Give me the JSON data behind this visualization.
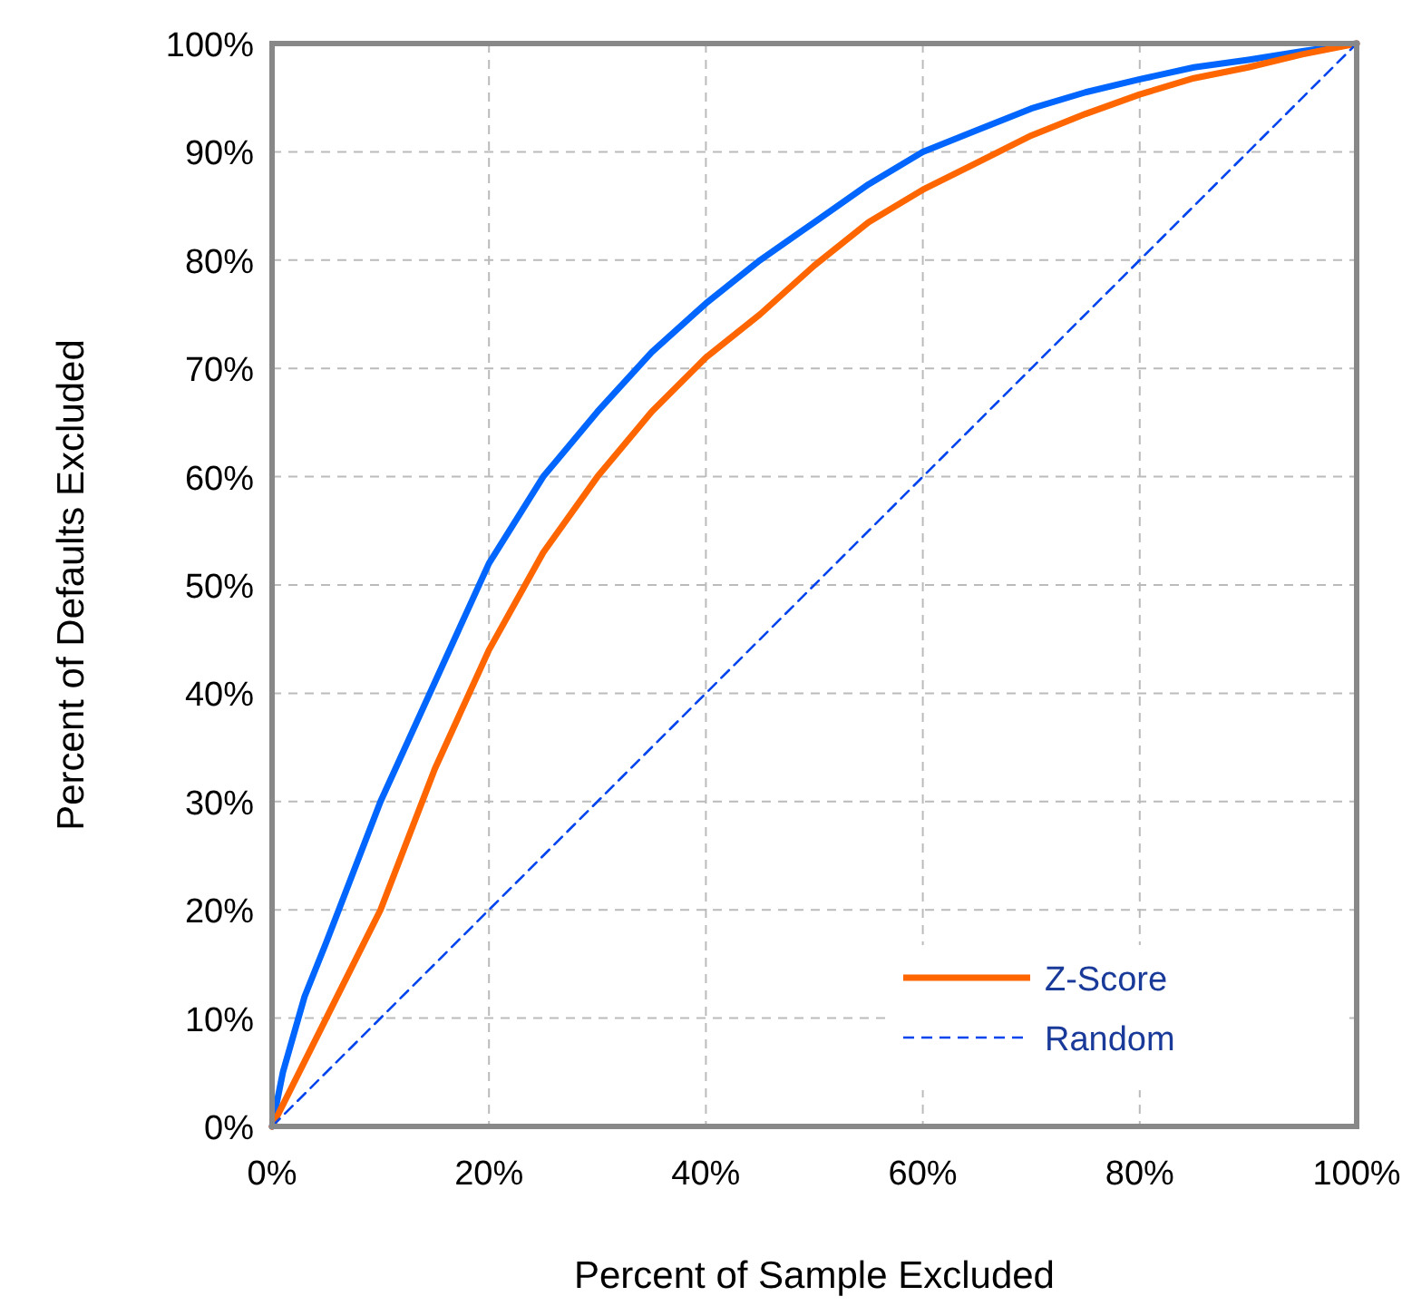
{
  "chart_data": {
    "type": "line",
    "xlabel": "Percent of Sample Excluded",
    "ylabel": "Percent of Defaults Excluded",
    "xlim": [
      0,
      100
    ],
    "ylim": [
      0,
      100
    ],
    "xticks": [
      {
        "value": 0,
        "label": "0%"
      },
      {
        "value": 20,
        "label": "20%"
      },
      {
        "value": 40,
        "label": "40%"
      },
      {
        "value": 60,
        "label": "60%"
      },
      {
        "value": 80,
        "label": "80%"
      },
      {
        "value": 100,
        "label": "100%"
      }
    ],
    "yticks": [
      {
        "value": 0,
        "label": "0%"
      },
      {
        "value": 10,
        "label": "10%"
      },
      {
        "value": 20,
        "label": "20%"
      },
      {
        "value": 30,
        "label": "30%"
      },
      {
        "value": 40,
        "label": "40%"
      },
      {
        "value": 50,
        "label": "50%"
      },
      {
        "value": 60,
        "label": "60%"
      },
      {
        "value": 70,
        "label": "70%"
      },
      {
        "value": 80,
        "label": "80%"
      },
      {
        "value": 90,
        "label": "90%"
      },
      {
        "value": 100,
        "label": "100%"
      }
    ],
    "grid": true,
    "legend": "bottom right",
    "series": [
      {
        "color": "#0066ff",
        "x": [
          0,
          1,
          3,
          5,
          10,
          15,
          20,
          25,
          30,
          35,
          40,
          45,
          50,
          55,
          60,
          65,
          70,
          75,
          80,
          85,
          90,
          95,
          100
        ],
        "values": [
          0,
          5,
          12,
          17,
          30,
          41,
          52,
          60,
          66,
          71.5,
          76,
          80,
          83.5,
          87,
          90,
          92,
          94,
          95.5,
          96.7,
          97.8,
          98.5,
          99.3,
          100
        ]
      },
      {
        "name": "Z-Score",
        "color": "#ff6600",
        "x": [
          0,
          1,
          3,
          5,
          10,
          15,
          20,
          25,
          30,
          35,
          40,
          45,
          50,
          55,
          60,
          65,
          70,
          75,
          80,
          85,
          90,
          95,
          100
        ],
        "values": [
          0,
          2,
          6,
          10,
          20,
          33,
          44,
          53,
          60,
          66,
          71,
          75,
          79.5,
          83.5,
          86.5,
          89,
          91.5,
          93.5,
          95.3,
          96.8,
          97.8,
          99,
          100
        ]
      },
      {
        "name": "Random",
        "color": "#0044ee",
        "line_style": "dashed",
        "x": [
          0,
          100
        ],
        "values": [
          0,
          100
        ]
      }
    ]
  }
}
